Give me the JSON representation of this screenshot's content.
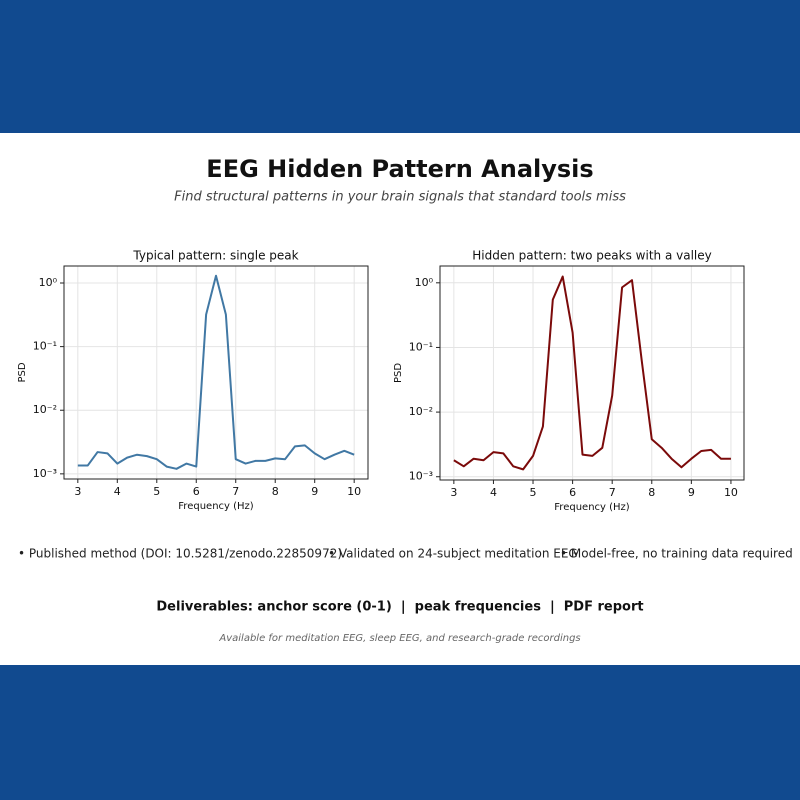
{
  "header": {
    "title": "EEG Hidden Pattern Analysis",
    "subtitle": "Find structural patterns in your brain signals that standard tools miss"
  },
  "chart_data": [
    {
      "type": "line",
      "title": "Typical pattern: single peak",
      "xlabel": "Frequency (Hz)",
      "ylabel": "PSD",
      "log_y": true,
      "grid": true,
      "color": "#4178a4",
      "x": [
        3,
        3.25,
        3.5,
        3.75,
        4,
        4.25,
        4.5,
        4.75,
        5,
        5.25,
        5.5,
        5.75,
        6,
        6.25,
        6.5,
        6.75,
        7,
        7.25,
        7.5,
        7.75,
        8,
        8.25,
        8.5,
        8.75,
        9,
        9.25,
        9.5,
        9.75,
        10
      ],
      "values": [
        0.00135,
        0.00135,
        0.0022,
        0.0021,
        0.00145,
        0.0018,
        0.002,
        0.0019,
        0.0017,
        0.0013,
        0.0012,
        0.00145,
        0.0013,
        0.32,
        1.3,
        0.32,
        0.0017,
        0.00145,
        0.0016,
        0.0016,
        0.00175,
        0.0017,
        0.0027,
        0.0028,
        0.0021,
        0.0017,
        0.002,
        0.0023,
        0.002
      ],
      "xlim": [
        2.65,
        10.35
      ],
      "ylim": [
        0.00083,
        1.85
      ],
      "xticks": [
        3,
        4,
        5,
        6,
        7,
        8,
        9,
        10
      ],
      "yticks": [
        {
          "value": 0.001,
          "label": "10⁻³"
        },
        {
          "value": 0.01,
          "label": "10⁻²"
        },
        {
          "value": 0.1,
          "label": "10⁻¹"
        },
        {
          "value": 1,
          "label": "10⁰"
        }
      ]
    },
    {
      "type": "line",
      "title": "Hidden pattern: two peaks with a valley",
      "xlabel": "Frequency (Hz)",
      "ylabel": "PSD",
      "log_y": true,
      "grid": true,
      "color": "#7b0a0a",
      "x": [
        3,
        3.25,
        3.5,
        3.75,
        4,
        4.25,
        4.5,
        4.75,
        5,
        5.25,
        5.5,
        5.75,
        6,
        6.25,
        6.5,
        6.75,
        7,
        7.25,
        7.5,
        7.75,
        8,
        8.25,
        8.5,
        8.75,
        9,
        9.25,
        9.5,
        9.75,
        10
      ],
      "values": [
        0.0018,
        0.00145,
        0.0019,
        0.0018,
        0.0024,
        0.0023,
        0.00145,
        0.0013,
        0.0021,
        0.006,
        0.55,
        1.25,
        0.17,
        0.0022,
        0.0021,
        0.0028,
        0.018,
        0.85,
        1.1,
        0.06,
        0.0038,
        0.0028,
        0.0019,
        0.0014,
        0.0019,
        0.0025,
        0.0026,
        0.0019,
        0.0019
      ],
      "xlim": [
        2.65,
        10.33
      ],
      "ylim": [
        0.00089,
        1.82
      ],
      "xticks": [
        3,
        4,
        5,
        6,
        7,
        8,
        9,
        10
      ],
      "yticks": [
        {
          "value": 0.001,
          "label": "10⁻³"
        },
        {
          "value": 0.01,
          "label": "10⁻²"
        },
        {
          "value": 0.1,
          "label": "10⁻¹"
        },
        {
          "value": 1,
          "label": "10⁰"
        }
      ]
    }
  ],
  "bullets": [
    "• Published method (DOI: 10.5281/zenodo.22850972)",
    "• Validated on 24-subject meditation EEG",
    "• Model-free, no training data required"
  ],
  "deliverables": "Deliverables: anchor score (0-1)  |  peak frequencies  |  PDF report",
  "footer": "Available for meditation EEG, sleep EEG, and research-grade recordings"
}
